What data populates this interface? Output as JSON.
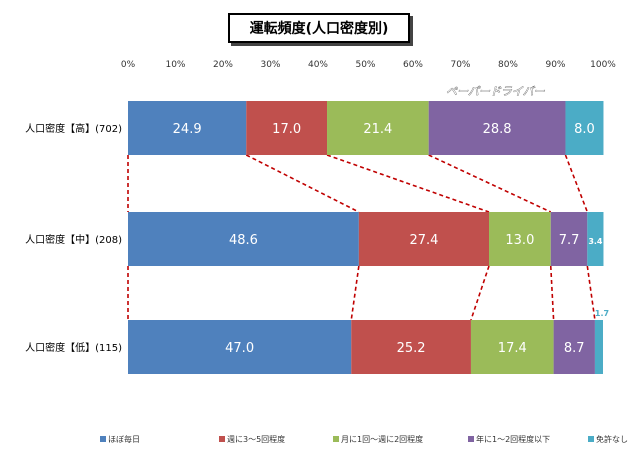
{
  "chart_data": {
    "type": "bar",
    "orientation": "horizontal",
    "stacked": "percent",
    "title": "運転頻度(人口密度別)",
    "categories": [
      "人口密度【高】(702)",
      "人口密度【中】(208)",
      "人口密度【低】(115)"
    ],
    "series": [
      {
        "name": "ほぼ毎日",
        "color": "#4f81bd",
        "values": [
          24.9,
          48.6,
          47.0
        ]
      },
      {
        "name": "週に3～5回程度",
        "color": "#c0504d",
        "values": [
          17.0,
          27.4,
          25.2
        ]
      },
      {
        "name": "月に1回～週に2回程度",
        "color": "#9bbb59",
        "values": [
          21.4,
          13.0,
          17.4
        ]
      },
      {
        "name": "年に1～2回程度以下",
        "color": "#8064a2",
        "values": [
          28.8,
          7.7,
          8.7
        ]
      },
      {
        "name": "免許なし",
        "color": "#4bacc6",
        "values": [
          8.0,
          3.4,
          1.7
        ]
      }
    ],
    "value_labels": [
      [
        "24.9",
        "17.0",
        "21.4",
        "28.8",
        "8.0"
      ],
      [
        "48.6",
        "27.4",
        "13.0",
        "7.7",
        "3.4"
      ],
      [
        "47.0",
        "25.2",
        "17.4",
        "8.7",
        "1.7"
      ]
    ],
    "xlim": [
      0,
      100
    ],
    "x_ticks": [
      "0%",
      "10%",
      "20%",
      "30%",
      "40%",
      "50%",
      "60%",
      "70%",
      "80%",
      "90%",
      "100%"
    ],
    "annotation": "ペーパードライバー",
    "legend_position": "bottom",
    "grid": false,
    "connector_color": "#c00000"
  }
}
